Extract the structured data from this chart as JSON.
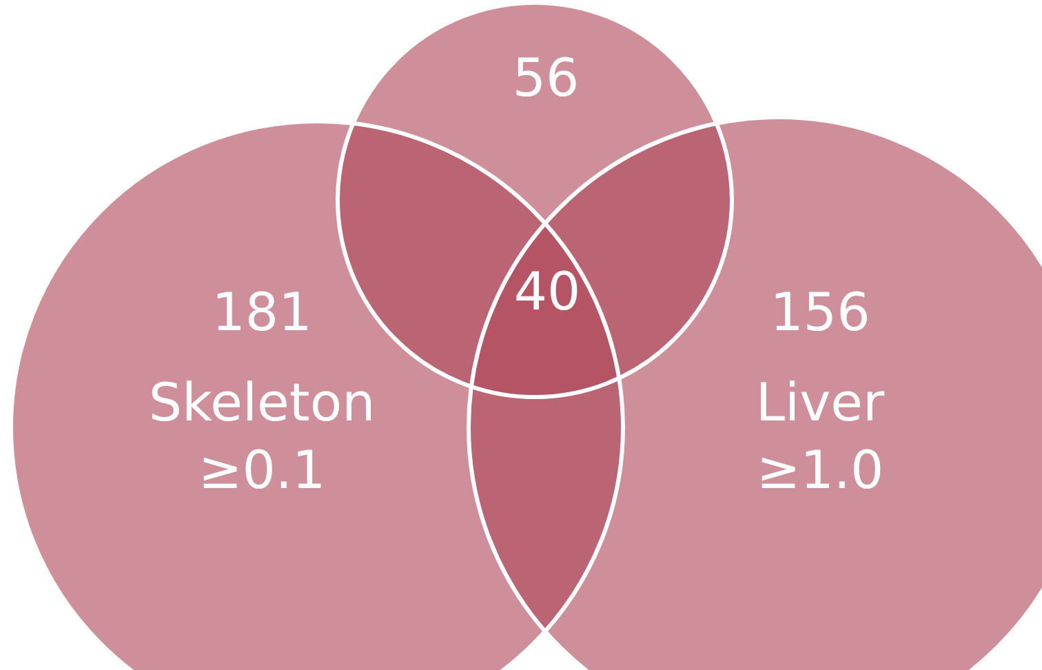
{
  "chart_data": {
    "type": "other",
    "categories": [
      "Skeleton\n≥0.1",
      "Liver\n≥1.0"
    ],
    "values": [
      181,
      156
    ],
    "data_labels": true,
    "color": "#b04a5c",
    "annotations": [
      "56",
      "40"
    ]
  }
}
